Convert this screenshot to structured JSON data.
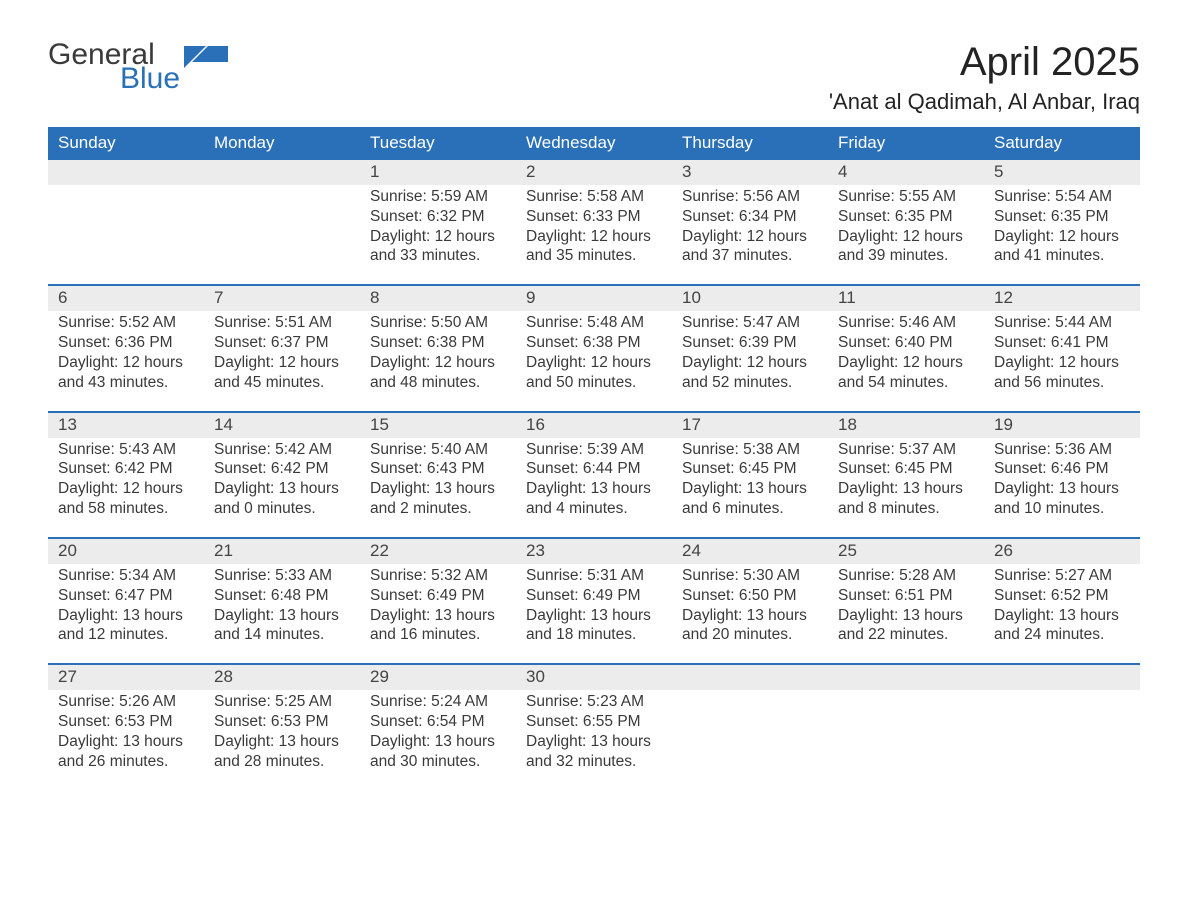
{
  "colors": {
    "header_bg": "#2a70b8",
    "header_text": "#ffffff",
    "daynum_bg": "#ececec",
    "week_border": "#2a70b8",
    "body_text": "#3a3a3a",
    "logo_gray": "#3a3a3a",
    "logo_blue": "#2a70b8",
    "page_bg": "#ffffff"
  },
  "logo": {
    "general": "General",
    "blue": "Blue"
  },
  "title": "April 2025",
  "location": "'Anat al Qadimah, Al Anbar, Iraq",
  "weekdays": [
    "Sunday",
    "Monday",
    "Tuesday",
    "Wednesday",
    "Thursday",
    "Friday",
    "Saturday"
  ],
  "weeks": [
    [
      {
        "n": ""
      },
      {
        "n": ""
      },
      {
        "n": "1",
        "sr": "Sunrise: 5:59 AM",
        "ss": "Sunset: 6:32 PM",
        "d1": "Daylight: 12 hours",
        "d2": "and 33 minutes."
      },
      {
        "n": "2",
        "sr": "Sunrise: 5:58 AM",
        "ss": "Sunset: 6:33 PM",
        "d1": "Daylight: 12 hours",
        "d2": "and 35 minutes."
      },
      {
        "n": "3",
        "sr": "Sunrise: 5:56 AM",
        "ss": "Sunset: 6:34 PM",
        "d1": "Daylight: 12 hours",
        "d2": "and 37 minutes."
      },
      {
        "n": "4",
        "sr": "Sunrise: 5:55 AM",
        "ss": "Sunset: 6:35 PM",
        "d1": "Daylight: 12 hours",
        "d2": "and 39 minutes."
      },
      {
        "n": "5",
        "sr": "Sunrise: 5:54 AM",
        "ss": "Sunset: 6:35 PM",
        "d1": "Daylight: 12 hours",
        "d2": "and 41 minutes."
      }
    ],
    [
      {
        "n": "6",
        "sr": "Sunrise: 5:52 AM",
        "ss": "Sunset: 6:36 PM",
        "d1": "Daylight: 12 hours",
        "d2": "and 43 minutes."
      },
      {
        "n": "7",
        "sr": "Sunrise: 5:51 AM",
        "ss": "Sunset: 6:37 PM",
        "d1": "Daylight: 12 hours",
        "d2": "and 45 minutes."
      },
      {
        "n": "8",
        "sr": "Sunrise: 5:50 AM",
        "ss": "Sunset: 6:38 PM",
        "d1": "Daylight: 12 hours",
        "d2": "and 48 minutes."
      },
      {
        "n": "9",
        "sr": "Sunrise: 5:48 AM",
        "ss": "Sunset: 6:38 PM",
        "d1": "Daylight: 12 hours",
        "d2": "and 50 minutes."
      },
      {
        "n": "10",
        "sr": "Sunrise: 5:47 AM",
        "ss": "Sunset: 6:39 PM",
        "d1": "Daylight: 12 hours",
        "d2": "and 52 minutes."
      },
      {
        "n": "11",
        "sr": "Sunrise: 5:46 AM",
        "ss": "Sunset: 6:40 PM",
        "d1": "Daylight: 12 hours",
        "d2": "and 54 minutes."
      },
      {
        "n": "12",
        "sr": "Sunrise: 5:44 AM",
        "ss": "Sunset: 6:41 PM",
        "d1": "Daylight: 12 hours",
        "d2": "and 56 minutes."
      }
    ],
    [
      {
        "n": "13",
        "sr": "Sunrise: 5:43 AM",
        "ss": "Sunset: 6:42 PM",
        "d1": "Daylight: 12 hours",
        "d2": "and 58 minutes."
      },
      {
        "n": "14",
        "sr": "Sunrise: 5:42 AM",
        "ss": "Sunset: 6:42 PM",
        "d1": "Daylight: 13 hours",
        "d2": "and 0 minutes."
      },
      {
        "n": "15",
        "sr": "Sunrise: 5:40 AM",
        "ss": "Sunset: 6:43 PM",
        "d1": "Daylight: 13 hours",
        "d2": "and 2 minutes."
      },
      {
        "n": "16",
        "sr": "Sunrise: 5:39 AM",
        "ss": "Sunset: 6:44 PM",
        "d1": "Daylight: 13 hours",
        "d2": "and 4 minutes."
      },
      {
        "n": "17",
        "sr": "Sunrise: 5:38 AM",
        "ss": "Sunset: 6:45 PM",
        "d1": "Daylight: 13 hours",
        "d2": "and 6 minutes."
      },
      {
        "n": "18",
        "sr": "Sunrise: 5:37 AM",
        "ss": "Sunset: 6:45 PM",
        "d1": "Daylight: 13 hours",
        "d2": "and 8 minutes."
      },
      {
        "n": "19",
        "sr": "Sunrise: 5:36 AM",
        "ss": "Sunset: 6:46 PM",
        "d1": "Daylight: 13 hours",
        "d2": "and 10 minutes."
      }
    ],
    [
      {
        "n": "20",
        "sr": "Sunrise: 5:34 AM",
        "ss": "Sunset: 6:47 PM",
        "d1": "Daylight: 13 hours",
        "d2": "and 12 minutes."
      },
      {
        "n": "21",
        "sr": "Sunrise: 5:33 AM",
        "ss": "Sunset: 6:48 PM",
        "d1": "Daylight: 13 hours",
        "d2": "and 14 minutes."
      },
      {
        "n": "22",
        "sr": "Sunrise: 5:32 AM",
        "ss": "Sunset: 6:49 PM",
        "d1": "Daylight: 13 hours",
        "d2": "and 16 minutes."
      },
      {
        "n": "23",
        "sr": "Sunrise: 5:31 AM",
        "ss": "Sunset: 6:49 PM",
        "d1": "Daylight: 13 hours",
        "d2": "and 18 minutes."
      },
      {
        "n": "24",
        "sr": "Sunrise: 5:30 AM",
        "ss": "Sunset: 6:50 PM",
        "d1": "Daylight: 13 hours",
        "d2": "and 20 minutes."
      },
      {
        "n": "25",
        "sr": "Sunrise: 5:28 AM",
        "ss": "Sunset: 6:51 PM",
        "d1": "Daylight: 13 hours",
        "d2": "and 22 minutes."
      },
      {
        "n": "26",
        "sr": "Sunrise: 5:27 AM",
        "ss": "Sunset: 6:52 PM",
        "d1": "Daylight: 13 hours",
        "d2": "and 24 minutes."
      }
    ],
    [
      {
        "n": "27",
        "sr": "Sunrise: 5:26 AM",
        "ss": "Sunset: 6:53 PM",
        "d1": "Daylight: 13 hours",
        "d2": "and 26 minutes."
      },
      {
        "n": "28",
        "sr": "Sunrise: 5:25 AM",
        "ss": "Sunset: 6:53 PM",
        "d1": "Daylight: 13 hours",
        "d2": "and 28 minutes."
      },
      {
        "n": "29",
        "sr": "Sunrise: 5:24 AM",
        "ss": "Sunset: 6:54 PM",
        "d1": "Daylight: 13 hours",
        "d2": "and 30 minutes."
      },
      {
        "n": "30",
        "sr": "Sunrise: 5:23 AM",
        "ss": "Sunset: 6:55 PM",
        "d1": "Daylight: 13 hours",
        "d2": "and 32 minutes."
      },
      {
        "n": ""
      },
      {
        "n": ""
      },
      {
        "n": ""
      }
    ]
  ]
}
